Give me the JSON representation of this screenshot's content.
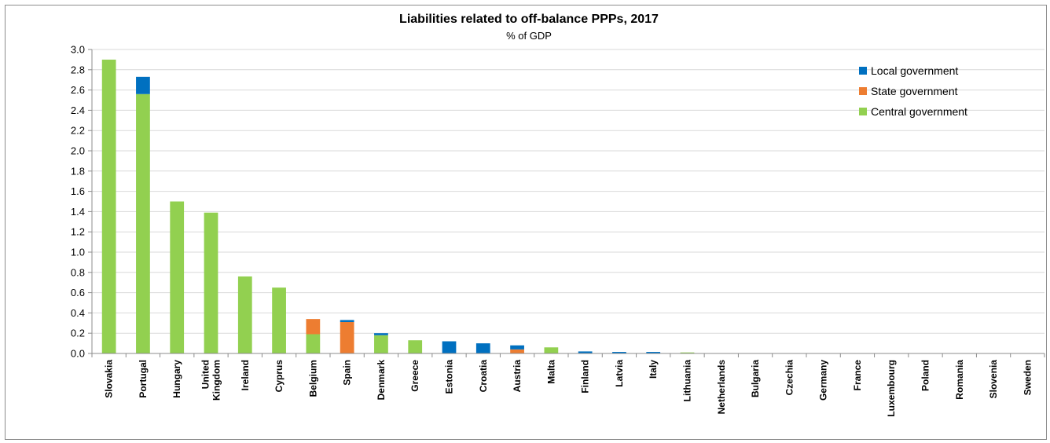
{
  "chart_data": {
    "type": "bar",
    "stacked": true,
    "title": "Liabilities related to off-balance PPPs, 2017",
    "subtitle": "% of GDP",
    "ylim": [
      0,
      3.0
    ],
    "yticks": [
      "0.0",
      "0.2",
      "0.4",
      "0.6",
      "0.8",
      "1.0",
      "1.2",
      "1.4",
      "1.6",
      "1.8",
      "2.0",
      "2.2",
      "2.4",
      "2.6",
      "2.8",
      "3.0"
    ],
    "grid": true,
    "legend_position": "top-right",
    "categories": [
      [
        "Slovakia"
      ],
      [
        "Portugal"
      ],
      [
        "Hungary"
      ],
      [
        "United",
        "Kingdom"
      ],
      [
        "Ireland"
      ],
      [
        "Cyprus"
      ],
      [
        "Belgium"
      ],
      [
        "Spain"
      ],
      [
        "Denmark"
      ],
      [
        "Greece"
      ],
      [
        "Estonia"
      ],
      [
        "Croatia"
      ],
      [
        "Austria"
      ],
      [
        "Malta"
      ],
      [
        "Finland"
      ],
      [
        "Latvia"
      ],
      [
        "Italy"
      ],
      [
        "Lithuania"
      ],
      [
        "Netherlands"
      ],
      [
        "Bulgaria"
      ],
      [
        "Czechia"
      ],
      [
        "Germany"
      ],
      [
        "France"
      ],
      [
        "Luxembourg"
      ],
      [
        "Poland"
      ],
      [
        "Romania"
      ],
      [
        "Slovenia"
      ],
      [
        "Sweden"
      ]
    ],
    "series": [
      {
        "name": "Central government",
        "color": "#92d050",
        "values": [
          2.9,
          2.56,
          1.5,
          1.39,
          0.76,
          0.65,
          0.19,
          0.0,
          0.18,
          0.13,
          0.0,
          0.0,
          0.0,
          0.06,
          0.0,
          0.0,
          0.0,
          0.01,
          0,
          0,
          0,
          0,
          0,
          0,
          0,
          0,
          0,
          0
        ]
      },
      {
        "name": "State government",
        "color": "#ed7d31",
        "values": [
          0,
          0,
          0,
          0,
          0,
          0,
          0.15,
          0.31,
          0,
          0,
          0,
          0,
          0.04,
          0,
          0,
          0,
          0,
          0,
          0,
          0,
          0,
          0,
          0,
          0,
          0,
          0,
          0,
          0
        ]
      },
      {
        "name": "Local government",
        "color": "#0070c0",
        "values": [
          0,
          0.17,
          0,
          0,
          0,
          0,
          0,
          0.02,
          0.02,
          0,
          0.12,
          0.1,
          0.04,
          0,
          0.02,
          0.015,
          0.015,
          0,
          0,
          0,
          0,
          0,
          0,
          0,
          0,
          0,
          0,
          0
        ]
      }
    ],
    "legend_order": [
      "Local government",
      "State government",
      "Central government"
    ]
  }
}
